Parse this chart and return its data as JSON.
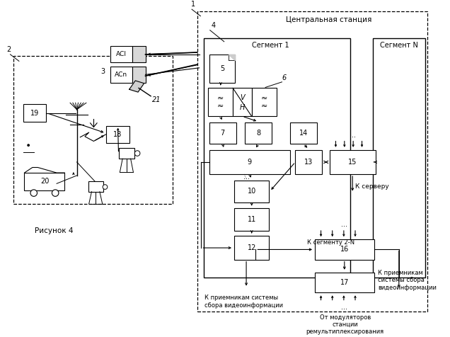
{
  "fig_w": 6.36,
  "fig_h": 4.76,
  "title_cs": "Центральная станция",
  "seg1": "Сегмент 1",
  "segN": "Сегмент N",
  "caption": "Рисунок 4",
  "note_recv1": "К приемникам системы\nсбора видеоинформации",
  "note_server": "К серверу",
  "note_seg2n": "К сегменту 2-N",
  "note_recv2": "К приемникам\nсистемы сбора\nвидеоинформации",
  "note_modul": "От модуляторов\nстанции\nремультиплексирования",
  "lbl1": "1",
  "lbl2": "2",
  "lbl3": "3",
  "lbl4": "4",
  "lbl5": "5",
  "lbl6": "6",
  "lbl7": "7",
  "lbl8": "8",
  "lbl9": "9",
  "lbl10": "10",
  "lbl11": "11",
  "lbl12": "12",
  "lbl13": "13",
  "lbl14": "14",
  "lbl15": "15",
  "lbl16": "16",
  "lbl17": "17",
  "lbl18": "18",
  "lbl19": "19",
  "lbl20": "20",
  "lbl21": "21",
  "lbl_ac1": "АСl",
  "lbl_acn": "АСn",
  "dots": "...",
  "wavy": "≈\n≈",
  "vh_v": "V",
  "vh_h": "H"
}
